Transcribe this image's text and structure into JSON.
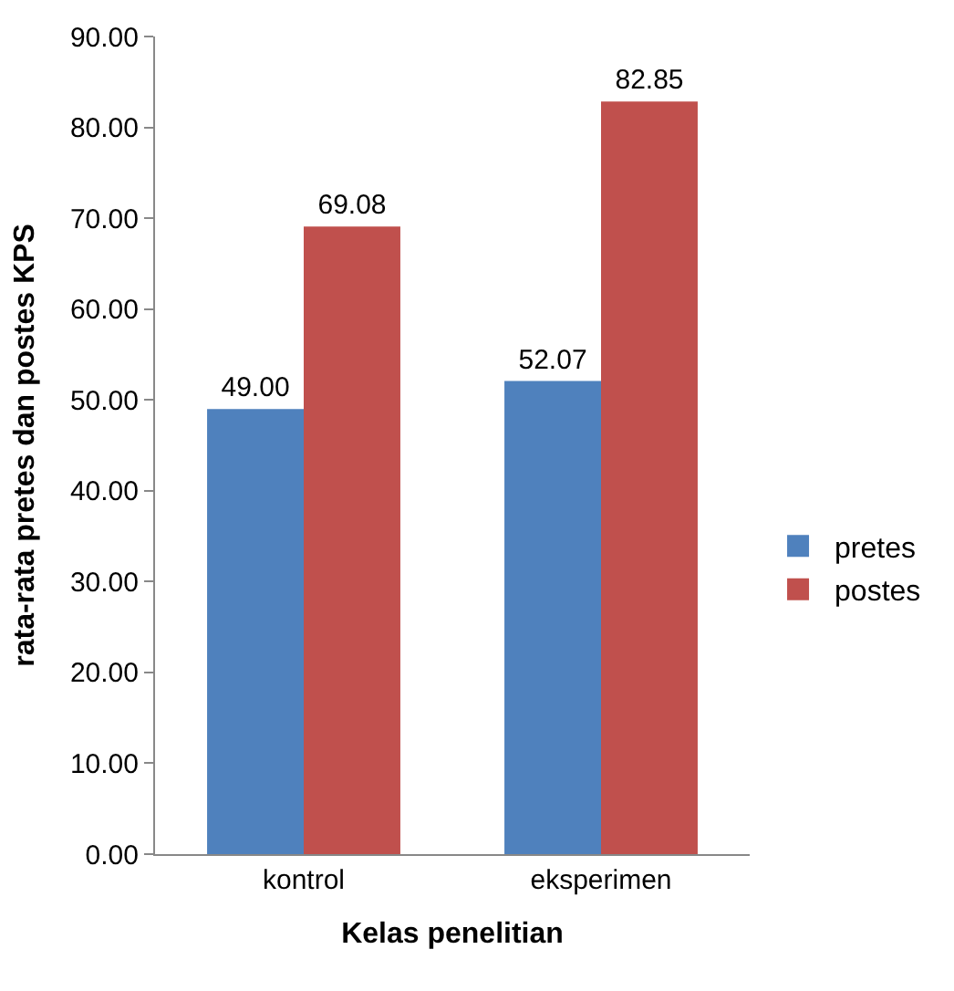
{
  "chart_data": {
    "type": "bar",
    "xlabel": "Kelas penelitian",
    "ylabel": "rata-rata pretes dan postes KPS",
    "categories": [
      "kontrol",
      "eksperimen"
    ],
    "series": [
      {
        "name": "pretes",
        "color": "#4f81bd",
        "values": [
          49.0,
          52.07
        ],
        "value_labels": [
          "49.00",
          "52.07"
        ]
      },
      {
        "name": "postes",
        "color": "#c0504d",
        "values": [
          69.08,
          82.85
        ],
        "value_labels": [
          "69.08",
          "82.85"
        ]
      }
    ],
    "ylim": [
      0,
      90
    ],
    "yticks": [
      {
        "value": 0,
        "label": "0.00"
      },
      {
        "value": 10,
        "label": "10.00"
      },
      {
        "value": 20,
        "label": "20.00"
      },
      {
        "value": 30,
        "label": "30.00"
      },
      {
        "value": 40,
        "label": "40.00"
      },
      {
        "value": 50,
        "label": "50.00"
      },
      {
        "value": 60,
        "label": "60.00"
      },
      {
        "value": 70,
        "label": "70.00"
      },
      {
        "value": 80,
        "label": "80.00"
      },
      {
        "value": 90,
        "label": "90.00"
      }
    ],
    "grid": false,
    "legend": "right"
  }
}
